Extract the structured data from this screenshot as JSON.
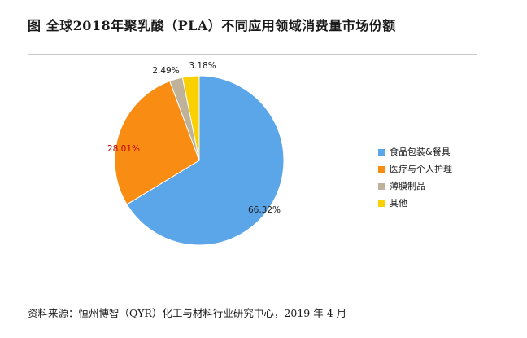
{
  "title": "图  全球2018年聚乳酸（PLA）不同应用领域消费量市场份额",
  "source": "资料来源：恒州博智（QYR）化工与材料行业研究中心，2019 年 4 月",
  "chart_data": {
    "type": "pie",
    "slices": [
      {
        "name": "食品包装&餐具",
        "value": 66.32,
        "label": "66.32%",
        "color": "#5ba6e8"
      },
      {
        "name": "医疗与个人护理",
        "value": 28.01,
        "label": "28.01%",
        "color": "#f98d13"
      },
      {
        "name": "薄膜制品",
        "value": 2.49,
        "label": "2.49%",
        "color": "#bfb29a"
      },
      {
        "name": "其他",
        "value": 3.18,
        "label": "3.18%",
        "color": "#fbd000"
      }
    ],
    "legend_position": "right",
    "start_angle": "12 o'clock",
    "direction": "clockwise"
  }
}
